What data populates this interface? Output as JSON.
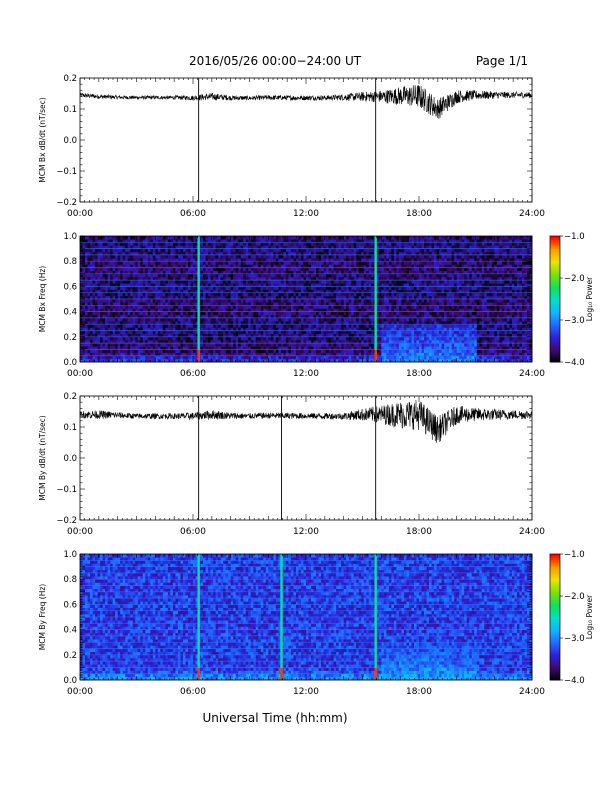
{
  "header": {
    "title": "2016/05/26  00:00−24:00 UT",
    "page": "Page 1/1"
  },
  "footer": {
    "xlabel": "Universal Time (hh:mm)"
  },
  "colorbar_labels": {
    "title": "Log₁₀ Power",
    "ticks": [
      "−1.0",
      "−2.0",
      "−3.0",
      "−4.0"
    ]
  },
  "colors": {
    "colormap": [
      "#000000",
      "#3a0a6e",
      "#2f1fd6",
      "#1f6aff",
      "#11b6ff",
      "#00e0c8",
      "#16e05a",
      "#7ee000",
      "#e6e600",
      "#ff9a00",
      "#ff0000"
    ]
  },
  "chart_data": [
    {
      "type": "line",
      "ylabel": "MCM Bx dB/dt (nT/sec)",
      "xlim": [
        "00:00",
        "24:00"
      ],
      "ylim": [
        -0.2,
        0.2
      ],
      "xticks": [
        "00:00",
        "06:00",
        "12:00",
        "18:00",
        "24:00"
      ],
      "yticks": [
        "0.2",
        "0.1",
        "0.0",
        "−0.1",
        "−0.2"
      ],
      "baseline": 0.14,
      "spikes_hours": [
        6.3,
        15.7
      ],
      "series": [
        {
          "x_hours": [
            0,
            1,
            2,
            3,
            4,
            5,
            6,
            7,
            8,
            9,
            10,
            11,
            12,
            13,
            14,
            15,
            16,
            17,
            18,
            19,
            20,
            21,
            22,
            23,
            24
          ],
          "y": [
            0.145,
            0.14,
            0.138,
            0.137,
            0.137,
            0.137,
            0.136,
            0.14,
            0.136,
            0.135,
            0.137,
            0.136,
            0.136,
            0.136,
            0.138,
            0.14,
            0.14,
            0.142,
            0.142,
            0.1,
            0.14,
            0.145,
            0.145,
            0.145,
            0.145
          ],
          "amplitude": [
            0.008,
            0.007,
            0.006,
            0.006,
            0.006,
            0.006,
            0.008,
            0.012,
            0.008,
            0.007,
            0.008,
            0.008,
            0.008,
            0.008,
            0.01,
            0.015,
            0.02,
            0.03,
            0.04,
            0.035,
            0.022,
            0.015,
            0.012,
            0.01,
            0.01
          ]
        }
      ]
    },
    {
      "type": "heatmap",
      "ylabel": "MCM Bx Freq (Hz)",
      "xlim": [
        "00:00",
        "24:00"
      ],
      "ylim": [
        0.0,
        1.0
      ],
      "xticks": [
        "00:00",
        "06:00",
        "12:00",
        "18:00",
        "24:00"
      ],
      "yticks": [
        "1.0",
        "0.8",
        "0.6",
        "0.4",
        "0.2",
        "0.0"
      ],
      "colorbar": {
        "range": [
          -4.0,
          -1.0
        ],
        "label": "Log₁₀ Power"
      },
      "spikes_hours": [
        6.3,
        15.7
      ],
      "background_log_power": -3.7,
      "active_interval_hours": [
        16,
        21
      ],
      "active_log_power": -3.0
    },
    {
      "type": "line",
      "ylabel": "MCM By dB/dt (nT/sec)",
      "xlim": [
        "00:00",
        "24:00"
      ],
      "ylim": [
        -0.2,
        0.2
      ],
      "xticks": [
        "00:00",
        "06:00",
        "12:00",
        "18:00",
        "24:00"
      ],
      "yticks": [
        "0.2",
        "0.1",
        "0.0",
        "−0.1",
        "−0.2"
      ],
      "baseline": 0.14,
      "spikes_hours": [
        6.3,
        10.7,
        15.7
      ],
      "series": [
        {
          "x_hours": [
            0,
            1,
            2,
            3,
            4,
            5,
            6,
            7,
            8,
            9,
            10,
            11,
            12,
            13,
            14,
            15,
            16,
            17,
            18,
            19,
            20,
            21,
            22,
            23,
            24
          ],
          "y": [
            0.14,
            0.14,
            0.138,
            0.135,
            0.135,
            0.135,
            0.135,
            0.14,
            0.136,
            0.135,
            0.137,
            0.136,
            0.136,
            0.135,
            0.135,
            0.14,
            0.14,
            0.14,
            0.14,
            0.09,
            0.14,
            0.14,
            0.14,
            0.14,
            0.14
          ],
          "amplitude": [
            0.012,
            0.014,
            0.01,
            0.009,
            0.009,
            0.009,
            0.012,
            0.015,
            0.011,
            0.009,
            0.01,
            0.01,
            0.01,
            0.01,
            0.011,
            0.02,
            0.03,
            0.045,
            0.05,
            0.045,
            0.03,
            0.022,
            0.018,
            0.015,
            0.015
          ]
        }
      ]
    },
    {
      "type": "heatmap",
      "ylabel": "MCM By Freq (Hz)",
      "xlim": [
        "00:00",
        "24:00"
      ],
      "ylim": [
        0.0,
        1.0
      ],
      "xticks": [
        "00:00",
        "06:00",
        "12:00",
        "18:00",
        "24:00"
      ],
      "yticks": [
        "1.0",
        "0.8",
        "0.6",
        "0.4",
        "0.2",
        "0.0"
      ],
      "colorbar": {
        "range": [
          -4.0,
          -1.0
        ],
        "label": "Log₁₀ Power"
      },
      "spikes_hours": [
        6.3,
        10.7,
        15.7
      ],
      "background_log_power": -3.3,
      "active_interval_hours": [
        16,
        21
      ],
      "active_log_power": -2.9
    }
  ]
}
